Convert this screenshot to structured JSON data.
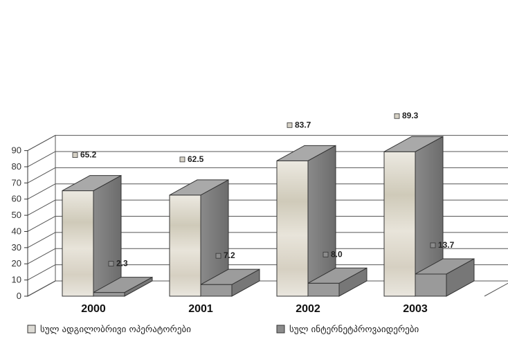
{
  "chart_data": {
    "type": "bar",
    "categories": [
      "2000",
      "2001",
      "2002",
      "2003"
    ],
    "series": [
      {
        "name": "სულ ადგილობრივი ოპერატორები",
        "values": [
          65.2,
          62.5,
          83.7,
          89.3
        ],
        "color": "#d9d4c8"
      },
      {
        "name": "სულ ინტერნეტპროვაიდერები",
        "values": [
          2.3,
          7.2,
          8.0,
          13.7
        ],
        "color": "#8c8c8c"
      }
    ],
    "data_labels": [
      [
        "65.2",
        "62.5",
        "83.7",
        "89.3"
      ],
      [
        "2.3",
        "7.2",
        "8.0",
        "13.7"
      ]
    ],
    "yticks": [
      "0",
      "10",
      "20",
      "30",
      "40",
      "50",
      "60",
      "70",
      "80",
      "90"
    ],
    "ylim": [
      0,
      90
    ],
    "grid": true,
    "legend_position": "bottom",
    "three_d": true
  }
}
